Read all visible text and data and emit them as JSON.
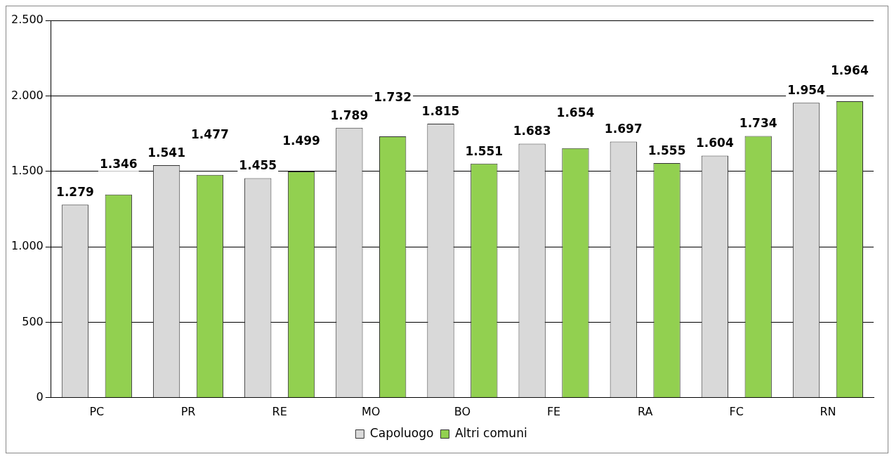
{
  "chart_data": {
    "type": "bar",
    "categories": [
      "PC",
      "PR",
      "RE",
      "MO",
      "BO",
      "FE",
      "RA",
      "FC",
      "RN"
    ],
    "series": [
      {
        "name": "Capoluogo",
        "color": "#d9d9d9",
        "values": [
          1279,
          1541,
          1455,
          1789,
          1815,
          1683,
          1697,
          1604,
          1954
        ],
        "value_labels": [
          "1.279",
          "1.541",
          "1.455",
          "1.789",
          "1.815",
          "1.683",
          "1.697",
          "1.604",
          "1.954"
        ]
      },
      {
        "name": "Altri comuni",
        "color": "#92d050",
        "values": [
          1346,
          1477,
          1499,
          1732,
          1551,
          1654,
          1555,
          1734,
          1964
        ],
        "value_labels": [
          "1.346",
          "1.477",
          "1.499",
          "1.732",
          "1.551",
          "1.654",
          "1.555",
          "1.734",
          "1.964"
        ]
      }
    ],
    "ylim": [
      0,
      2500
    ],
    "yticks": [
      {
        "value": 0,
        "label": "0"
      },
      {
        "value": 500,
        "label": "500"
      },
      {
        "value": 1000,
        "label": "1.000"
      },
      {
        "value": 1500,
        "label": "1.500"
      },
      {
        "value": 2000,
        "label": "2.000"
      },
      {
        "value": 2500,
        "label": "2.500"
      }
    ],
    "grid": "y",
    "legend": "bottom"
  }
}
